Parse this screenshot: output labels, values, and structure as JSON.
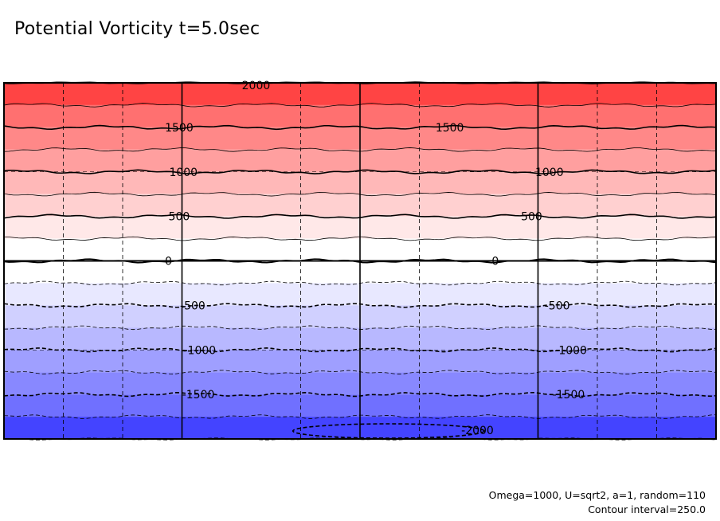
{
  "title": "Potential Vorticity t=5.0sec",
  "footnote": {
    "params": "Omega=1000, U=sqrt2, a=1, random=110",
    "interval": "Contour interval=250.0"
  },
  "chart_data": {
    "type": "contour",
    "title": "Potential Vorticity t=5.0sec",
    "xlabel": "",
    "ylabel": "",
    "levels_range": [
      -2000,
      2000
    ],
    "contour_interval": 250.0,
    "bands": [
      {
        "from": 1750,
        "to": 2000,
        "color": "#ff4444"
      },
      {
        "from": 1500,
        "to": 1750,
        "color": "#ff7070"
      },
      {
        "from": 1250,
        "to": 1500,
        "color": "#ff8888"
      },
      {
        "from": 1000,
        "to": 1250,
        "color": "#ff9f9f"
      },
      {
        "from": 750,
        "to": 1000,
        "color": "#ffb8b8"
      },
      {
        "from": 500,
        "to": 750,
        "color": "#ffd0d0"
      },
      {
        "from": 250,
        "to": 500,
        "color": "#ffe8e8"
      },
      {
        "from": 0,
        "to": 250,
        "color": "#ffffff"
      },
      {
        "from": -250,
        "to": 0,
        "color": "#ffffff"
      },
      {
        "from": -500,
        "to": -250,
        "color": "#e8e8ff"
      },
      {
        "from": -750,
        "to": -500,
        "color": "#d0d0ff"
      },
      {
        "from": -1000,
        "to": -750,
        "color": "#b8b8ff"
      },
      {
        "from": -1250,
        "to": -1000,
        "color": "#9f9fff"
      },
      {
        "from": -1500,
        "to": -1250,
        "color": "#8888ff"
      },
      {
        "from": -1750,
        "to": -1500,
        "color": "#7070ff"
      },
      {
        "from": -2000,
        "to": -1750,
        "color": "#4444ff"
      }
    ],
    "contour_labels": [
      {
        "text": "2000",
        "value": 2000,
        "col": 0.354
      },
      {
        "text": "1500",
        "value": 1500,
        "col": 0.246
      },
      {
        "text": "1500",
        "value": 1500,
        "col": 0.626
      },
      {
        "text": "1000",
        "value": 1000,
        "col": 0.252
      },
      {
        "text": "1000",
        "value": 1000,
        "col": 0.766
      },
      {
        "text": "500",
        "value": 500,
        "col": 0.246
      },
      {
        "text": "500",
        "value": 500,
        "col": 0.741
      },
      {
        "text": "0",
        "value": 0,
        "col": 0.231
      },
      {
        "text": "0",
        "value": 0,
        "col": 0.69
      },
      {
        "text": "-500",
        "value": -500,
        "col": 0.265
      },
      {
        "text": "-500",
        "value": -500,
        "col": 0.777
      },
      {
        "text": "-1000",
        "value": -1000,
        "col": 0.275
      },
      {
        "text": "-1000",
        "value": -1000,
        "col": 0.796
      },
      {
        "text": "-1500",
        "value": -1500,
        "col": 0.273
      },
      {
        "text": "-1500",
        "value": -1500,
        "col": 0.793
      },
      {
        "text": "-2000",
        "value": -2000,
        "col": 0.665
      }
    ],
    "grid": {
      "major_vertical": 3,
      "minor_vertical": 8,
      "minor_horizontal": 3
    },
    "colors": {
      "positive_max": "#ff4444",
      "negative_max": "#4444ff",
      "grid": "#000000"
    }
  }
}
